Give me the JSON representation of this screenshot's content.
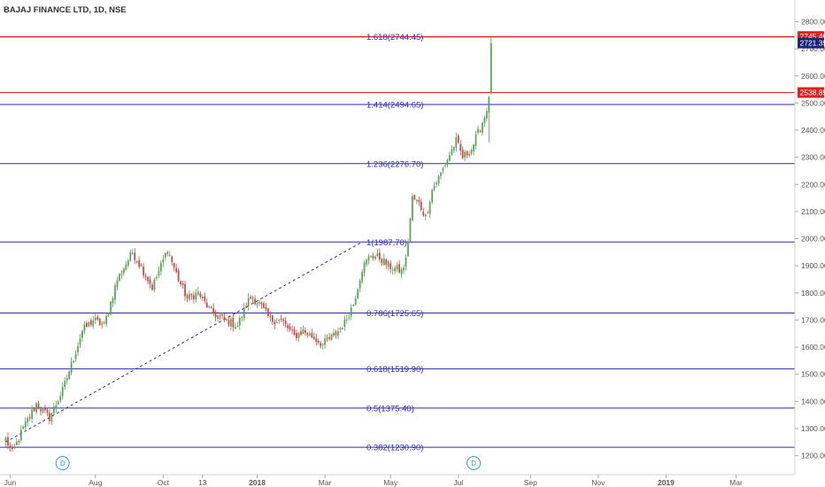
{
  "chart_data": {
    "type": "candlestick",
    "title": "BAJAJ FINANCE LTD, 1D, NSE",
    "y_range": [
      1130,
      2880
    ],
    "y_ticks": [
      "2800.00",
      "2700.00",
      "2600.00",
      "2500.00",
      "2400.00",
      "2300.00",
      "2200.00",
      "2100.00",
      "2000.00",
      "1900.00",
      "1800.00",
      "1700.00",
      "1600.00",
      "1500.00",
      "1400.00",
      "1300.00",
      "1200.00"
    ],
    "x_labels": [
      {
        "label": "Jun",
        "bar": 2
      },
      {
        "label": "Aug",
        "bar": 41
      },
      {
        "label": "Oct",
        "bar": 72
      },
      {
        "label": "13",
        "bar": 90
      },
      {
        "label": "2018",
        "bar": 115
      },
      {
        "label": "Mar",
        "bar": 146
      },
      {
        "label": "May",
        "bar": 176
      },
      {
        "label": "Jul",
        "bar": 207
      },
      {
        "label": "Sep",
        "bar": 240
      },
      {
        "label": "Nov",
        "bar": 271
      },
      {
        "label": "2019",
        "bar": 302
      },
      {
        "label": "Mar",
        "bar": 334
      }
    ],
    "fib_levels": [
      {
        "label": "1.618(2744.45)",
        "value": 2744.45,
        "color": "#e02020"
      },
      {
        "label": "1.414(2494.65)",
        "value": 2494.65,
        "color": "#2a2ab8"
      },
      {
        "label": "1.236(2276.70)",
        "value": 2276.7,
        "color": "#2a2ab8"
      },
      {
        "label": "1(1987.70)",
        "value": 1987.7,
        "color": "#2a2ab8"
      },
      {
        "label": "0.786(1725.65)",
        "value": 1725.65,
        "color": "#2a2ab8"
      },
      {
        "label": "0.618(1519.90)",
        "value": 1519.9,
        "color": "#2a2ab8"
      },
      {
        "label": "0.5(1375.40)",
        "value": 1375.4,
        "color": "#2a2ab8"
      },
      {
        "label": "0.382(1230.90)",
        "value": 1230.9,
        "color": "#2a2ab8"
      }
    ],
    "extra_lines": [
      {
        "value": 2538.85,
        "color": "#e02020"
      }
    ],
    "price_tags": [
      {
        "label": "2745.40",
        "value": 2745.4,
        "color": "#e02020"
      },
      {
        "label": "2721.35",
        "value": 2721.35,
        "color": "#1a237e"
      },
      {
        "label": "2538.85",
        "value": 2538.85,
        "color": "#e02020"
      }
    ],
    "trendline": {
      "from": {
        "bar": 0,
        "value": 1250
      },
      "to": {
        "bar": 163,
        "value": 1987.7
      }
    },
    "dividend_markers": [
      {
        "label": "D",
        "bar": 26
      },
      {
        "label": "D",
        "bar": 214
      }
    ],
    "anchors": [
      {
        "bar": 0,
        "value": 1260
      },
      {
        "bar": 3,
        "value": 1210
      },
      {
        "bar": 8,
        "value": 1300
      },
      {
        "bar": 14,
        "value": 1390
      },
      {
        "bar": 20,
        "value": 1340
      },
      {
        "bar": 26,
        "value": 1440
      },
      {
        "bar": 31,
        "value": 1560
      },
      {
        "bar": 35,
        "value": 1660
      },
      {
        "bar": 40,
        "value": 1700
      },
      {
        "bar": 45,
        "value": 1680
      },
      {
        "bar": 51,
        "value": 1850
      },
      {
        "bar": 58,
        "value": 1950
      },
      {
        "bar": 63,
        "value": 1880
      },
      {
        "bar": 67,
        "value": 1820
      },
      {
        "bar": 74,
        "value": 1960
      },
      {
        "bar": 79,
        "value": 1850
      },
      {
        "bar": 83,
        "value": 1780
      },
      {
        "bar": 88,
        "value": 1800
      },
      {
        "bar": 94,
        "value": 1730
      },
      {
        "bar": 100,
        "value": 1700
      },
      {
        "bar": 106,
        "value": 1680
      },
      {
        "bar": 112,
        "value": 1790
      },
      {
        "bar": 116,
        "value": 1760
      },
      {
        "bar": 121,
        "value": 1700
      },
      {
        "bar": 126,
        "value": 1700
      },
      {
        "bar": 132,
        "value": 1640
      },
      {
        "bar": 136,
        "value": 1660
      },
      {
        "bar": 140,
        "value": 1640
      },
      {
        "bar": 145,
        "value": 1610
      },
      {
        "bar": 151,
        "value": 1650
      },
      {
        "bar": 155,
        "value": 1690
      },
      {
        "bar": 159,
        "value": 1760
      },
      {
        "bar": 163,
        "value": 1890
      },
      {
        "bar": 167,
        "value": 1940
      },
      {
        "bar": 171,
        "value": 1930
      },
      {
        "bar": 175,
        "value": 1900
      },
      {
        "bar": 181,
        "value": 1880
      },
      {
        "bar": 183,
        "value": 1920
      },
      {
        "bar": 186,
        "value": 2150
      },
      {
        "bar": 189,
        "value": 2130
      },
      {
        "bar": 192,
        "value": 2080
      },
      {
        "bar": 195,
        "value": 2180
      },
      {
        "bar": 199,
        "value": 2240
      },
      {
        "bar": 203,
        "value": 2310
      },
      {
        "bar": 206,
        "value": 2360
      },
      {
        "bar": 209,
        "value": 2300
      },
      {
        "bar": 213,
        "value": 2330
      },
      {
        "bar": 216,
        "value": 2390
      },
      {
        "bar": 219,
        "value": 2450
      },
      {
        "bar": 221,
        "value": 2510
      },
      {
        "bar": 222,
        "value": 2721.35
      }
    ]
  }
}
